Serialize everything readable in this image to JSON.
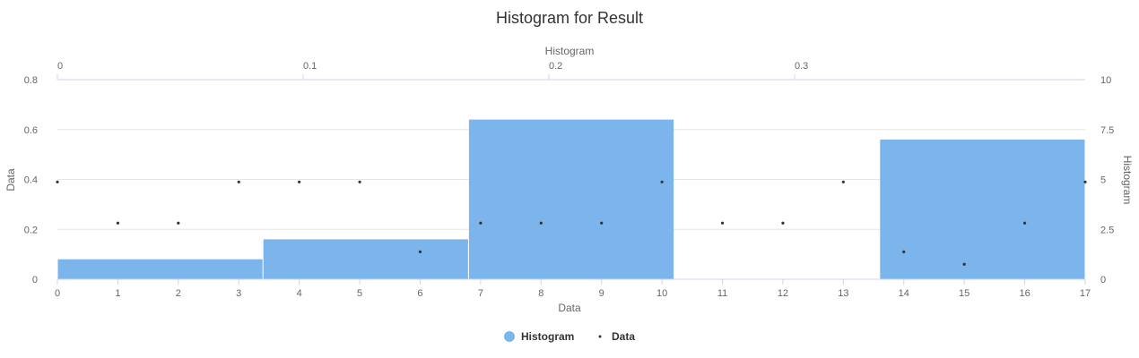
{
  "chart_data": {
    "type": "histogram",
    "title": "Histogram for Result",
    "colors": {
      "histogram": "#7cb5ec",
      "data": "#333333"
    },
    "x_axis": {
      "label": "Data",
      "min": 0,
      "max": 17,
      "ticks": [
        0,
        1,
        2,
        3,
        4,
        5,
        6,
        7,
        8,
        9,
        10,
        11,
        12,
        13,
        14,
        15,
        16,
        17
      ]
    },
    "y_axis_left": {
      "label": "Data",
      "min": 0,
      "max": 0.8,
      "ticks": [
        0,
        0.2,
        0.4,
        0.6,
        0.8
      ],
      "tick_labels": [
        "0",
        "0.2",
        "0.4",
        "0.6",
        "0.8"
      ]
    },
    "x_axis_top": {
      "label": "Histogram",
      "ticks": [
        0,
        0.1,
        0.2,
        0.3
      ],
      "tick_labels": [
        "0",
        "0.1",
        "0.2",
        "0.3"
      ]
    },
    "y_axis_right": {
      "label": "Histogram",
      "min": 0,
      "max": 10,
      "ticks": [
        0,
        2.5,
        5,
        7.5,
        10
      ],
      "tick_labels": [
        "0",
        "2.5",
        "5",
        "7.5",
        "10"
      ]
    },
    "histogram": {
      "name": "Histogram",
      "bins": [
        {
          "x0": 0,
          "x1": 3.4,
          "count": 1
        },
        {
          "x0": 3.4,
          "x1": 6.8,
          "count": 2
        },
        {
          "x0": 6.8,
          "x1": 10.2,
          "count": 8
        },
        {
          "x0": 10.2,
          "x1": 13.6,
          "count": 0
        },
        {
          "x0": 13.6,
          "x1": 17,
          "count": 7
        }
      ]
    },
    "scatter": {
      "name": "Data",
      "points": [
        [
          0,
          0.39
        ],
        [
          1,
          0.225
        ],
        [
          2,
          0.225
        ],
        [
          3,
          0.39
        ],
        [
          4,
          0.39
        ],
        [
          5,
          0.39
        ],
        [
          6,
          0.11
        ],
        [
          7,
          0.225
        ],
        [
          8,
          0.225
        ],
        [
          9,
          0.225
        ],
        [
          10,
          0.39
        ],
        [
          11,
          0.225
        ],
        [
          12,
          0.225
        ],
        [
          13,
          0.39
        ],
        [
          14,
          0.11
        ],
        [
          15,
          0.06
        ],
        [
          16,
          0.225
        ],
        [
          17,
          0.39
        ]
      ]
    },
    "legend": {
      "position": "bottom-center",
      "items": [
        "Histogram",
        "Data"
      ]
    },
    "grid": true
  }
}
